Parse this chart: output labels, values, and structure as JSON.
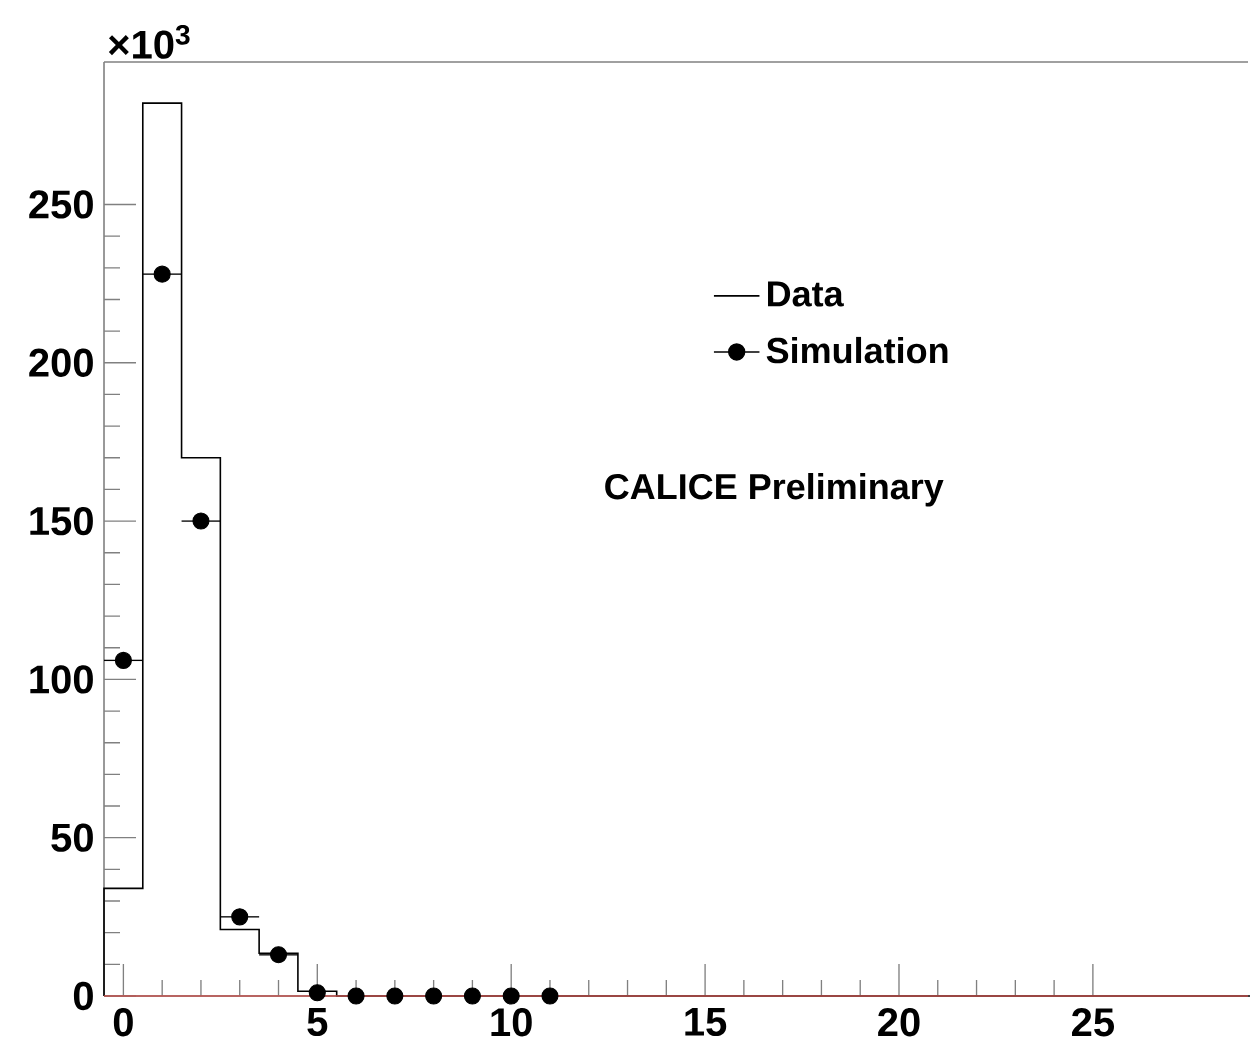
{
  "chart_data": {
    "type": "histogram",
    "series": [
      {
        "name": "Data",
        "color": "#000000",
        "bins": [
          -0.5,
          0.5,
          1.5,
          2.5,
          3.5,
          4.5,
          5.5,
          6.5,
          7.5,
          8.5,
          9.5,
          10.5,
          11.5,
          12.5,
          13.5,
          14.5,
          15.5,
          16.5,
          17.5,
          18.5,
          19.5,
          20.5,
          21.5,
          22.5,
          23.5,
          24.5,
          25.5,
          26.5,
          27.5,
          28.5,
          29.5
        ],
        "values": [
          34,
          282,
          170,
          21,
          13.5,
          1.5,
          0,
          0,
          0,
          0,
          0,
          0,
          0,
          0,
          0,
          0,
          0,
          0,
          0,
          0,
          0,
          0,
          0,
          0,
          0,
          0,
          0,
          0,
          0,
          0
        ]
      },
      {
        "name": "Simulation",
        "type": "scatter",
        "color": "#000000",
        "marker": "circle",
        "x": [
          0,
          1,
          2,
          3,
          4,
          5,
          6,
          7,
          8,
          9,
          10,
          11
        ],
        "values": [
          106,
          228,
          150,
          25,
          13,
          1,
          0,
          0,
          0,
          0,
          0,
          0
        ],
        "xerrors": [
          0.5,
          0.5,
          0.5,
          0.5,
          0.5,
          null,
          null,
          null,
          null,
          null,
          null,
          null
        ]
      }
    ],
    "xlim": [
      -0.5,
      29
    ],
    "ylim": [
      0,
      295
    ],
    "xticks": [
      0,
      5,
      10,
      15,
      20,
      25
    ],
    "yticks": [
      0,
      50,
      100,
      150,
      200,
      250
    ],
    "ref_lines": [
      {
        "axis": "y",
        "value": 0,
        "color": "#c0504d"
      }
    ],
    "legend": "top right",
    "annotations": [
      "×10$^{3}$",
      "CALICE Preliminary"
    ]
  }
}
